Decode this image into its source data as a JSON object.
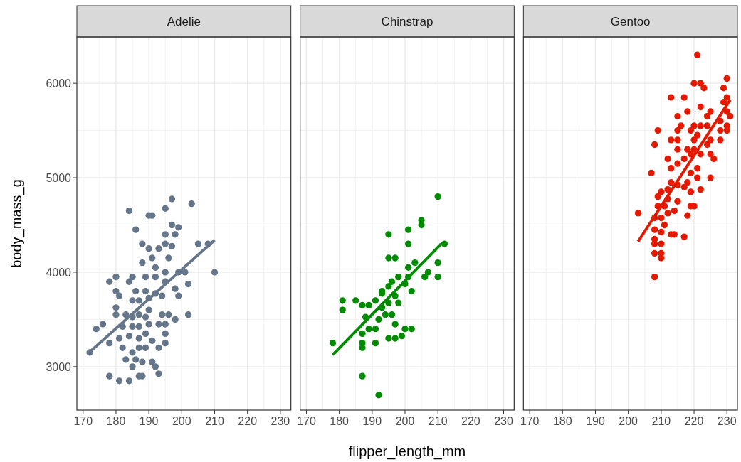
{
  "chart_data": [
    {
      "type": "scatter",
      "title": "Adelie",
      "ylabel": "body_mass_g",
      "marker": "circle",
      "grid": true,
      "xlim": [
        168.1,
        233.2
      ],
      "ylim": [
        2540,
        6490
      ],
      "xticks": [
        170,
        {
          "value": 175,
          "label": null
        },
        180,
        {
          "value": 185,
          "label": null
        },
        190,
        {
          "value": 195,
          "label": null
        },
        200,
        {
          "value": 205,
          "label": null
        },
        210,
        {
          "value": 215,
          "label": null
        },
        220,
        {
          "value": 225,
          "label": null
        },
        230
      ],
      "yticks": [
        3000,
        {
          "value": 3500,
          "label": null
        },
        4000,
        {
          "value": 4500,
          "label": null
        },
        5000,
        {
          "value": 5500,
          "label": null
        },
        6000
      ],
      "series": [
        {
          "color": "#66768a",
          "x": [
            197,
            203,
            195,
            184,
            190,
            191,
            186,
            197,
            199,
            195,
            198,
            188,
            190,
            193,
            195,
            197,
            205,
            208,
            191,
            196,
            188,
            192,
            195,
            199,
            201,
            210,
            178,
            180,
            184,
            185,
            189,
            192,
            195,
            202,
            180,
            181,
            186,
            189,
            192,
            194,
            198,
            199,
            190,
            185,
            187,
            190,
            180,
            180,
            183,
            185,
            187,
            189,
            194,
            196,
            198,
            202,
            174,
            176,
            182,
            185,
            187,
            190,
            193,
            195,
            181,
            184,
            187,
            189,
            191,
            195,
            195,
            178,
            172,
            182,
            185,
            187,
            189,
            193,
            183,
            186,
            188,
            191,
            192,
            185,
            193,
            178,
            181,
            184,
            187,
            188
          ],
          "values": [
            4775,
            4725,
            4675,
            4650,
            4600,
            4600,
            4450,
            4500,
            4475,
            4400,
            4400,
            4300,
            4250,
            4250,
            4300,
            4275,
            4300,
            4300,
            4150,
            4150,
            4100,
            4050,
            4000,
            4000,
            4000,
            4000,
            3900,
            3950,
            3900,
            3950,
            3950,
            3950,
            3900,
            3875,
            3800,
            3750,
            3800,
            3800,
            3775,
            3750,
            3825,
            3750,
            3725,
            3700,
            3700,
            3600,
            3625,
            3550,
            3550,
            3525,
            3550,
            3525,
            3550,
            3550,
            3500,
            3550,
            3400,
            3450,
            3425,
            3425,
            3425,
            3450,
            3450,
            3450,
            3300,
            3325,
            3300,
            3350,
            3275,
            3350,
            3250,
            3250,
            3150,
            3200,
            3150,
            3200,
            3200,
            3200,
            3075,
            3075,
            3050,
            3050,
            3000,
            3000,
            2925,
            2900,
            2850,
            2850,
            2900,
            2900
          ]
        },
        {
          "type": "line",
          "marker": "none",
          "color": "#66768a",
          "x": [
            172,
            210
          ],
          "values": [
            3155,
            4340
          ]
        }
      ]
    },
    {
      "type": "scatter",
      "title": "Chinstrap",
      "xlabel": "flipper_length_mm",
      "marker": "circle",
      "grid": true,
      "tick_labels": "x",
      "xlim": [
        168.1,
        233.2
      ],
      "ylim": [
        2540,
        6490
      ],
      "xticks": [
        170,
        {
          "value": 175,
          "label": null
        },
        180,
        {
          "value": 185,
          "label": null
        },
        190,
        {
          "value": 195,
          "label": null
        },
        200,
        {
          "value": 205,
          "label": null
        },
        210,
        {
          "value": 215,
          "label": null
        },
        220,
        {
          "value": 225,
          "label": null
        },
        230
      ],
      "yticks": [
        3000,
        {
          "value": 3500,
          "label": null
        },
        4000,
        {
          "value": 4500,
          "label": null
        },
        5000,
        {
          "value": 5500,
          "label": null
        },
        6000
      ],
      "series": [
        {
          "color": "#008b00",
          "x": [
            210,
            205,
            205,
            195,
            201,
            201,
            212,
            195,
            197,
            210,
            203,
            201,
            207,
            206,
            210,
            198,
            201,
            196,
            195,
            200,
            193,
            193,
            202,
            197,
            198,
            195,
            193,
            191,
            189,
            187,
            185,
            181,
            181,
            194,
            196,
            188,
            192,
            197,
            189,
            191,
            195,
            197,
            199,
            202,
            200,
            187,
            187,
            187,
            191,
            178,
            187,
            192
          ],
          "values": [
            4800,
            4550,
            4500,
            4400,
            4450,
            4300,
            4300,
            4150,
            4150,
            4100,
            4100,
            4050,
            4000,
            3950,
            3950,
            3950,
            3950,
            3900,
            3850,
            3875,
            3800,
            3775,
            3800,
            3750,
            3675,
            3675,
            3625,
            3700,
            3650,
            3650,
            3700,
            3700,
            3600,
            3550,
            3550,
            3525,
            3500,
            3450,
            3400,
            3400,
            3300,
            3300,
            3325,
            3400,
            3400,
            3350,
            3250,
            3200,
            3250,
            3250,
            2900,
            2700
          ]
        },
        {
          "type": "line",
          "marker": "none",
          "color": "#008b00",
          "x": [
            178,
            211
          ],
          "values": [
            3125,
            4300
          ]
        }
      ]
    },
    {
      "type": "scatter",
      "title": "Gentoo",
      "marker": "circle",
      "grid": true,
      "tick_labels": "x",
      "xlim": [
        168.1,
        233.2
      ],
      "ylim": [
        2540,
        6490
      ],
      "xticks": [
        170,
        {
          "value": 175,
          "label": null
        },
        180,
        {
          "value": 185,
          "label": null
        },
        190,
        {
          "value": 195,
          "label": null
        },
        200,
        {
          "value": 205,
          "label": null
        },
        210,
        {
          "value": 215,
          "label": null
        },
        220,
        {
          "value": 225,
          "label": null
        },
        230
      ],
      "yticks": [
        3000,
        {
          "value": 3500,
          "label": null
        },
        4000,
        {
          "value": 4500,
          "label": null
        },
        5000,
        {
          "value": 5500,
          "label": null
        },
        6000
      ],
      "series": [
        {
          "color": "#e41a00",
          "x": [
            221,
            220,
            222,
            223,
            230,
            229,
            213,
            217,
            230,
            229,
            222,
            218,
            225,
            224,
            215,
            231,
            230,
            228,
            216,
            215,
            220,
            222,
            224,
            230,
            209,
            219,
            228,
            230,
            221,
            213,
            215,
            220,
            225,
            228,
            208,
            215,
            218,
            220,
            224,
            222,
            225,
            226,
            212,
            217,
            219,
            213,
            215,
            221,
            219,
            207,
            225,
            221,
            218,
            213,
            215,
            212,
            217,
            222,
            219,
            210,
            209,
            212,
            215,
            211,
            209,
            219,
            220,
            214,
            212,
            203,
            218,
            208,
            210,
            211,
            208,
            210,
            213,
            214,
            217,
            208,
            208,
            210,
            208,
            210,
            210,
            208
          ],
          "values": [
            6300,
            6000,
            6000,
            5950,
            6050,
            5950,
            5850,
            5850,
            5850,
            5800,
            5750,
            5700,
            5700,
            5650,
            5650,
            5650,
            5700,
            5600,
            5550,
            5500,
            5550,
            5550,
            5550,
            5550,
            5500,
            5500,
            5500,
            5500,
            5450,
            5400,
            5400,
            5400,
            5400,
            5400,
            5350,
            5300,
            5300,
            5300,
            5350,
            5250,
            5250,
            5200,
            5200,
            5200,
            5250,
            5100,
            5150,
            5100,
            5050,
            5050,
            5000,
            5000,
            4950,
            4950,
            4925,
            4875,
            4900,
            4875,
            4850,
            4850,
            4800,
            4775,
            4750,
            4700,
            4700,
            4700,
            4700,
            4650,
            4625,
            4625,
            4600,
            4575,
            4575,
            4500,
            4450,
            4425,
            4400,
            4400,
            4375,
            4350,
            4300,
            4300,
            4200,
            4200,
            4150,
            3950
          ]
        },
        {
          "type": "line",
          "marker": "none",
          "color": "#e41a00",
          "x": [
            203,
            231
          ],
          "values": [
            4325,
            5825
          ]
        }
      ]
    }
  ]
}
